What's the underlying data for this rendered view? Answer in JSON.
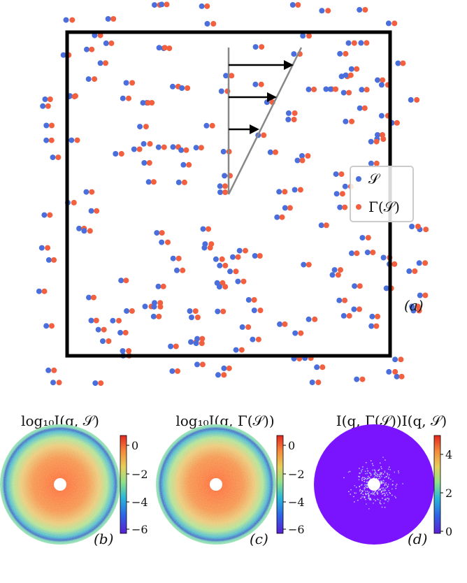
{
  "panel_a": {
    "label": "(a)",
    "legend": {
      "items": [
        {
          "symbol": "S",
          "label": "𝒮",
          "color": "#4a6fdc"
        },
        {
          "symbol": "Gamma(S)",
          "label": "Γ(𝒮)",
          "color": "#f2603f"
        }
      ]
    },
    "colors": {
      "S": "#4a6fdc",
      "Gamma": "#f2603f",
      "box": "#000000",
      "shear": "#888888"
    }
  },
  "panels_bottom": [
    {
      "id": "b",
      "label": "(b)",
      "title": "log₁₀I(q, 𝒮)",
      "colorbar": {
        "ticks": [
          "0",
          "−2",
          "−4",
          "−6"
        ],
        "cmap": "rainbow"
      }
    },
    {
      "id": "c",
      "label": "(c)",
      "title": "log₁₀I(q, Γ(𝒮))",
      "colorbar": {
        "ticks": [
          "0",
          "−2",
          "−4",
          "−6"
        ],
        "cmap": "rainbow"
      }
    },
    {
      "id": "d",
      "label": "(d)",
      "title": "I(q, Γ(𝒮))I(q, 𝒮)",
      "colorbar": {
        "ticks": [
          "4",
          "2",
          "0"
        ],
        "cmap": "rainbow"
      }
    }
  ]
}
